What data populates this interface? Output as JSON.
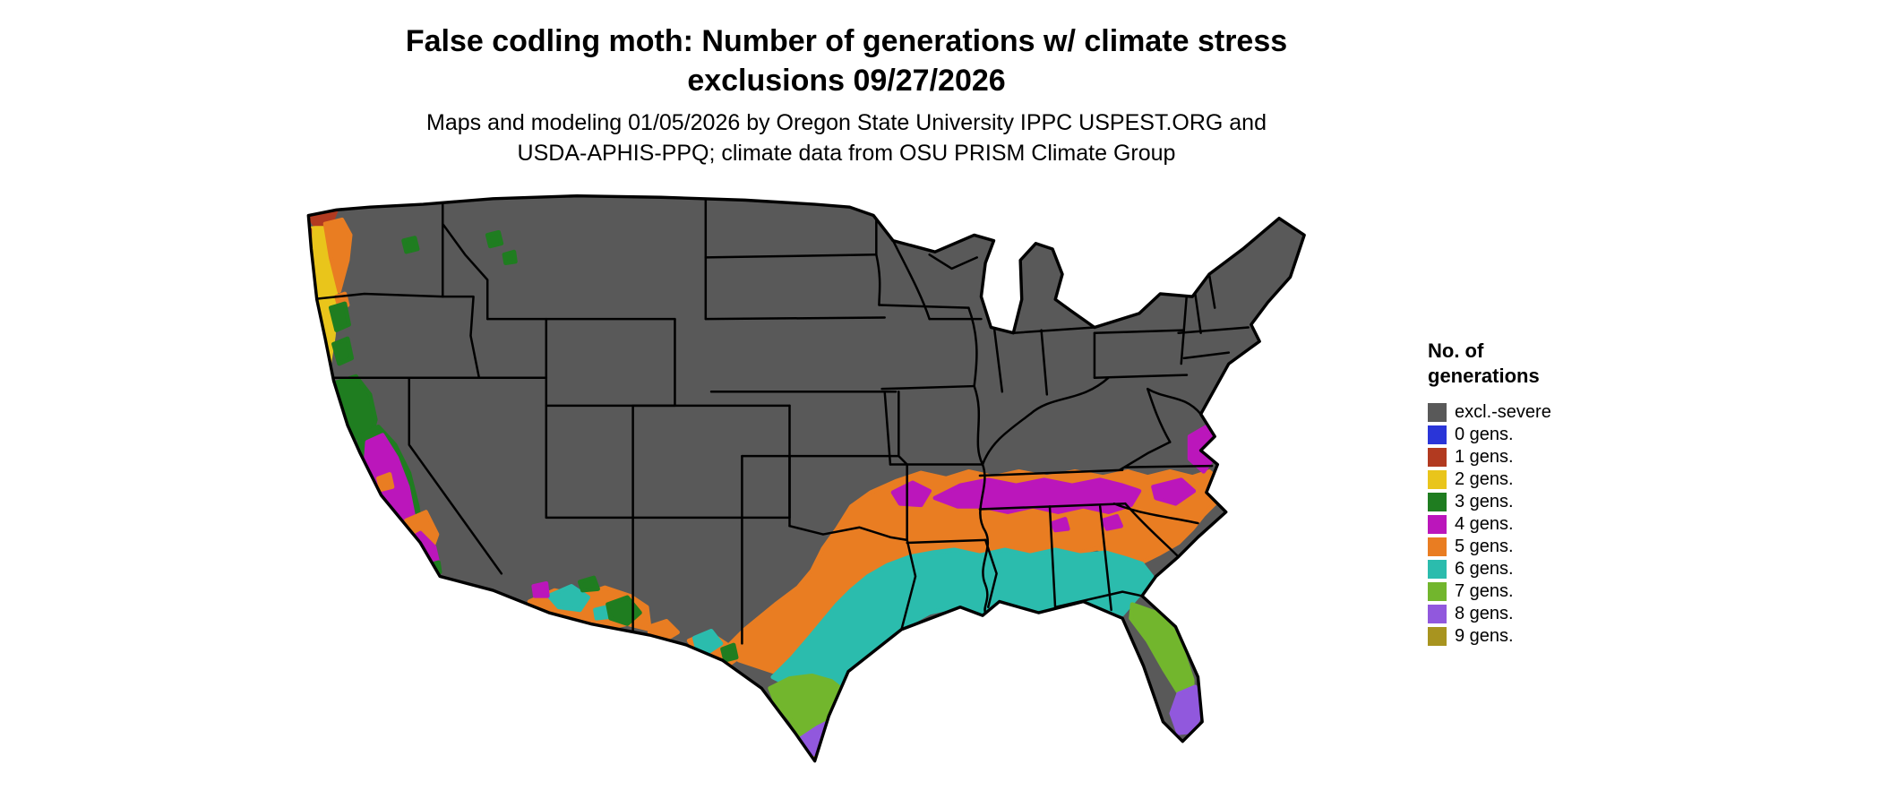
{
  "title": {
    "line1": "False codling moth: Number of generations w/ climate stress",
    "line2": "exclusions 09/27/2026"
  },
  "subtitle": {
    "line1": "Maps and modeling 01/05/2026 by Oregon State University IPPC USPEST.ORG and",
    "line2": "USDA-APHIS-PPQ; climate data from OSU PRISM Climate Group"
  },
  "legend": {
    "title_line1": "No. of",
    "title_line2": "generations",
    "entries": [
      {
        "id": "excl-severe",
        "label": "excl.-severe",
        "color": "#595959"
      },
      {
        "id": "gen0",
        "label": "0 gens.",
        "color": "#2a35d8"
      },
      {
        "id": "gen1",
        "label": "1 gens.",
        "color": "#b23a20"
      },
      {
        "id": "gen2",
        "label": "2 gens.",
        "color": "#e9c51b"
      },
      {
        "id": "gen3",
        "label": "3 gens.",
        "color": "#1f7d20"
      },
      {
        "id": "gen4",
        "label": "4 gens.",
        "color": "#bb16bb"
      },
      {
        "id": "gen5",
        "label": "5 gens.",
        "color": "#e97d22"
      },
      {
        "id": "gen6",
        "label": "6 gens.",
        "color": "#2bbcad"
      },
      {
        "id": "gen7",
        "label": "7 gens.",
        "color": "#72b62d"
      },
      {
        "id": "gen8",
        "label": "8 gens.",
        "color": "#9158dd"
      },
      {
        "id": "gen9",
        "label": "9 gens.",
        "color": "#a8941f"
      }
    ]
  },
  "map": {
    "region_label": "Contiguous United States",
    "base_fill_id": "excl-severe",
    "border_color": "#000000",
    "background_color": "#ffffff"
  }
}
